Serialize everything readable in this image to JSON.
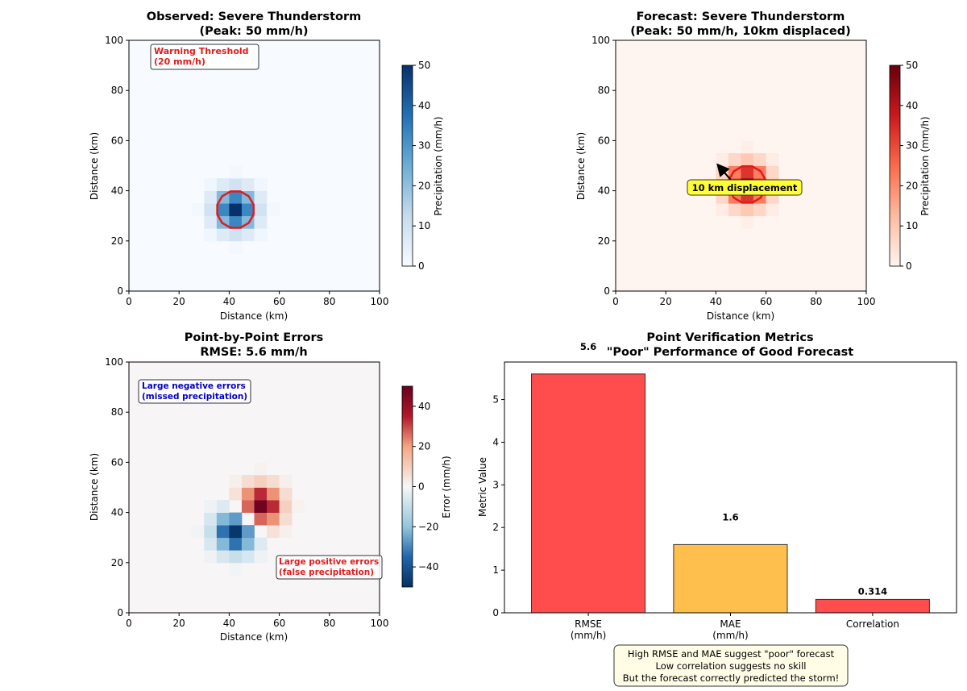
{
  "chart_data": [
    {
      "type": "heatmap",
      "title": "Observed: Severe Thunderstorm",
      "subtitle": "(Peak: 50 mm/h)",
      "xlabel": "Distance (km)",
      "ylabel": "Distance (km)",
      "xlim": [
        0,
        100
      ],
      "ylim": [
        0,
        100
      ],
      "xticks": [
        "0",
        "20",
        "40",
        "60",
        "80",
        "100"
      ],
      "yticks": [
        "0",
        "20",
        "40",
        "60",
        "80",
        "100"
      ],
      "colormap": "Blues",
      "colorbar": {
        "label": "Precipitation (mm/h)",
        "range": [
          0,
          50
        ],
        "ticks": [
          "0",
          "10",
          "20",
          "30",
          "40",
          "50"
        ]
      },
      "center": [
        42.5,
        32.5
      ],
      "peak": 50,
      "contour_level": 20,
      "annotation": {
        "text": [
          "Warning Threshold",
          "(20 mm/h)"
        ],
        "color": "#e31a1c"
      }
    },
    {
      "type": "heatmap",
      "title": "Forecast: Severe Thunderstorm",
      "subtitle": "(Peak: 50 mm/h, 10km displaced)",
      "xlabel": "Distance (km)",
      "ylabel": "Distance (km)",
      "xlim": [
        0,
        100
      ],
      "ylim": [
        0,
        100
      ],
      "xticks": [
        "0",
        "20",
        "40",
        "60",
        "80",
        "100"
      ],
      "yticks": [
        "0",
        "20",
        "40",
        "60",
        "80",
        "100"
      ],
      "colormap": "Reds",
      "colorbar": {
        "label": "Precipitation (mm/h)",
        "range": [
          0,
          50
        ],
        "ticks": [
          "0",
          "10",
          "20",
          "30",
          "40",
          "50"
        ]
      },
      "center": [
        52.5,
        42.5
      ],
      "peak": 50,
      "contour_level": 20,
      "annotation": {
        "text": "10 km displacement",
        "arrow_from": [
          47.5,
          42.5
        ],
        "arrow_to": [
          41.5,
          49.5
        ]
      }
    },
    {
      "type": "heatmap",
      "title": "Point-by-Point Errors",
      "subtitle": "RMSE: 5.6 mm/h",
      "xlabel": "Distance (km)",
      "ylabel": "Distance (km)",
      "xlim": [
        0,
        100
      ],
      "ylim": [
        0,
        100
      ],
      "xticks": [
        "0",
        "20",
        "40",
        "60",
        "80",
        "100"
      ],
      "yticks": [
        "0",
        "20",
        "40",
        "60",
        "80",
        "100"
      ],
      "colormap": "RdBu_r",
      "colorbar": {
        "label": "Error (mm/h)",
        "range": [
          -50,
          50
        ],
        "ticks": [
          "−40",
          "−20",
          "0",
          "20",
          "40"
        ]
      },
      "annotations": [
        {
          "text": [
            "Large negative errors",
            "(missed precipitation)"
          ],
          "color": "#0000cc"
        },
        {
          "text": [
            "Large positive errors",
            "(false precipitation)"
          ],
          "color": "#e31a1c"
        }
      ]
    },
    {
      "type": "bar",
      "title": "Point Verification Metrics",
      "subtitle": "\"Poor\" Performance of Good Forecast",
      "categories": [
        [
          "RMSE",
          "(mm/h)"
        ],
        [
          "MAE",
          "(mm/h)"
        ],
        [
          "Correlation"
        ]
      ],
      "values": [
        5.6,
        1.6,
        0.314
      ],
      "value_labels": [
        "5.6",
        "1.6",
        "0.314"
      ],
      "colors": [
        "#ff4d4d",
        "#ffbf4d",
        "#ff4d4d"
      ],
      "ylabel": "Metric Value",
      "ylim": [
        0,
        5.88
      ],
      "yticks": [
        "0",
        "1",
        "2",
        "3",
        "4",
        "5"
      ],
      "note": [
        "High RMSE and MAE suggest \"poor\" forecast",
        "Low correlation suggests no skill",
        "But the forecast correctly predicted the storm!"
      ]
    }
  ]
}
